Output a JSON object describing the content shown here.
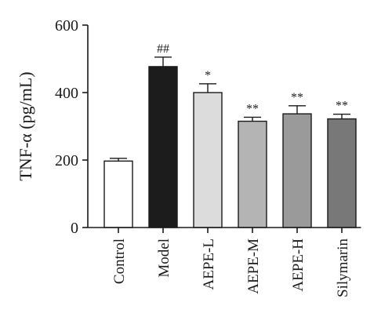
{
  "chart_data": {
    "type": "bar",
    "ylabel": "TNF-α (pg/mL)",
    "ylim": [
      0,
      600
    ],
    "yticks": [
      0,
      200,
      400,
      600
    ],
    "categories": [
      "Control",
      "Model",
      "AEPE-L",
      "AEPE-M",
      "AEPE-H",
      "Silymarin"
    ],
    "values": [
      197,
      477,
      400,
      315,
      337,
      322
    ],
    "errors": [
      8,
      28,
      26,
      12,
      24,
      14
    ],
    "significance": [
      "",
      "##",
      "*",
      "**",
      "**",
      "**"
    ],
    "bar_colors": [
      "#ffffff",
      "#1c1c1c",
      "#dcdcdc",
      "#b4b4b4",
      "#9a9a9a",
      "#787878"
    ],
    "grid": false
  }
}
